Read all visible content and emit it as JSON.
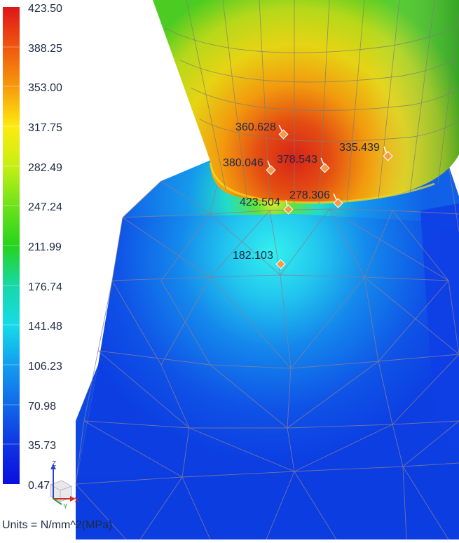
{
  "legend": {
    "labels": [
      "423.50",
      "388.25",
      "353.00",
      "317.75",
      "282.49",
      "247.24",
      "211.99",
      "176.74",
      "141.48",
      "106.23",
      "70.98",
      "35.73",
      "0.47"
    ],
    "gradient_colors": [
      "#e0141a",
      "#f0560f",
      "#f79a0c",
      "#fdeb0f",
      "#c7ef14",
      "#6ee21c",
      "#26d41c",
      "#17d8a6",
      "#16dbe8",
      "#129eef",
      "#1169ea",
      "#0f35e2",
      "#0a0ee0"
    ]
  },
  "probes": [
    {
      "id": "p1",
      "label": "360.628"
    },
    {
      "id": "p2",
      "label": "380.046"
    },
    {
      "id": "p3",
      "label": "378.543"
    },
    {
      "id": "p4",
      "label": "335.439"
    },
    {
      "id": "p5",
      "label": "423.504"
    },
    {
      "id": "p6",
      "label": "278.306"
    },
    {
      "id": "p7",
      "label": "182.103"
    }
  ],
  "units": "Units = N/mm^2(MPa)",
  "triad": {
    "x_label": "X",
    "y_label": "Y",
    "z_label": "Z"
  }
}
